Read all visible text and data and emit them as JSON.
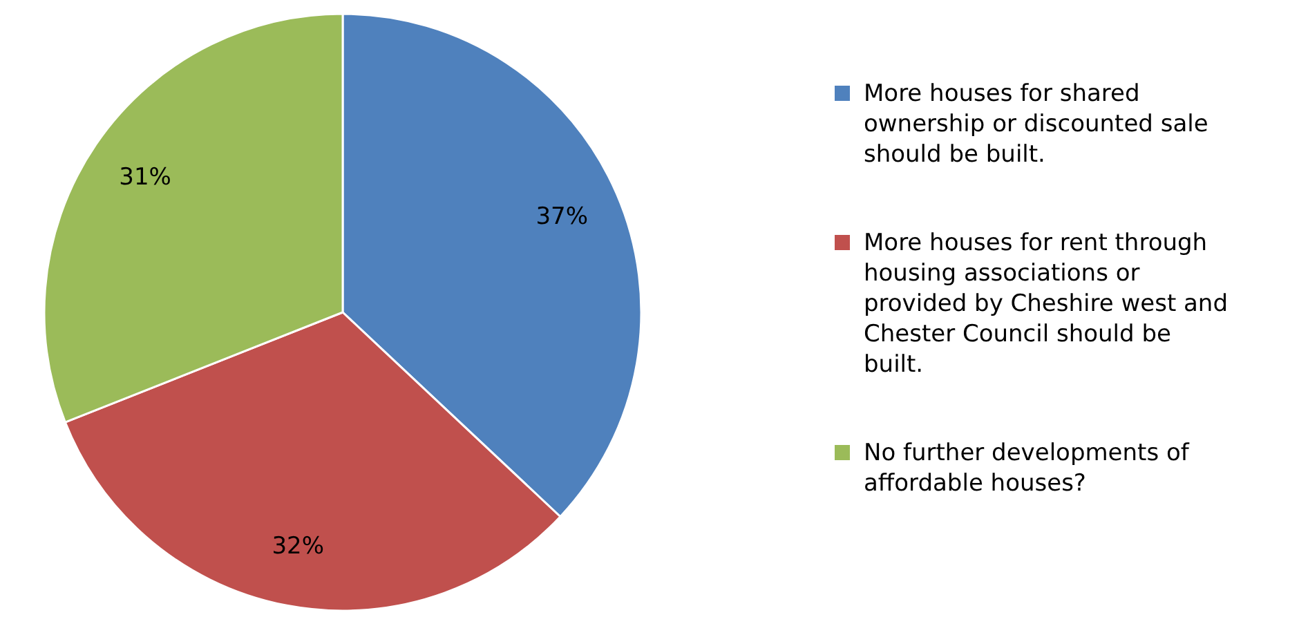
{
  "chart_data": {
    "type": "pie",
    "categories": [
      "More houses for shared ownership or discounted sale should be built.",
      "More houses for rent through housing associations or provided by Cheshire west and Chester Council should be built.",
      "No further developments of affordable houses?"
    ],
    "values": [
      37,
      32,
      31
    ],
    "colors": [
      "#4f81bd",
      "#c0504d",
      "#9bbb59"
    ],
    "value_labels": [
      "37%",
      "32%",
      "31%"
    ],
    "legend": "right"
  }
}
